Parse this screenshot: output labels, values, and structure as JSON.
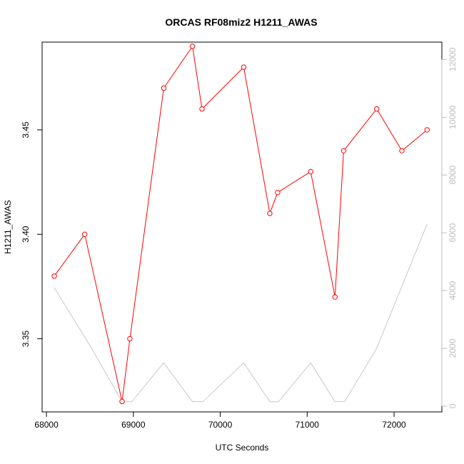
{
  "chart_data": {
    "type": "line",
    "title": "ORCAS RF08miz2 H1211_AWAS",
    "xlabel": "UTC Seconds",
    "ylabel": "H1211_AWAS",
    "xlim": [
      67950,
      72550
    ],
    "ylim": [
      3.315,
      3.492
    ],
    "y2lim": [
      -200,
      12600
    ],
    "x_ticks": [
      68000,
      69000,
      70000,
      71000,
      72000
    ],
    "y_ticks": [
      3.35,
      3.4,
      3.45
    ],
    "y2_ticks": [
      0,
      2000,
      4000,
      6000,
      8000,
      10000,
      12000
    ],
    "grid": false,
    "series": [
      {
        "axis": "left",
        "color": "#ff0000",
        "markers": "open-circle",
        "x": [
          68090,
          68440,
          68870,
          68960,
          69350,
          69680,
          69790,
          70270,
          70570,
          70660,
          71040,
          71320,
          71420,
          71800,
          72090,
          72380
        ],
        "y": [
          3.38,
          3.4,
          3.32,
          3.35,
          3.47,
          3.49,
          3.46,
          3.48,
          3.41,
          3.42,
          3.43,
          3.37,
          3.44,
          3.46,
          3.44,
          3.45
        ]
      },
      {
        "axis": "right",
        "color": "#c8c8c8",
        "markers": "none",
        "x": [
          68090,
          68500,
          68870,
          68980,
          69350,
          69680,
          69800,
          70270,
          70570,
          70670,
          71040,
          71320,
          71430,
          71800,
          72380
        ],
        "y": [
          4100,
          2100,
          150,
          150,
          1500,
          150,
          150,
          1500,
          150,
          150,
          1500,
          150,
          150,
          2000,
          6300
        ]
      }
    ]
  }
}
